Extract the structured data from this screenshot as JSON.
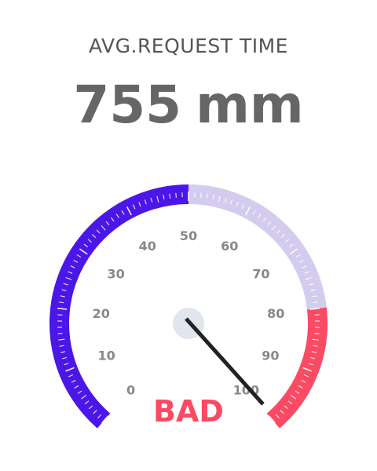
{
  "widget": {
    "title": "AVG.REQUEST TIME",
    "value": "755",
    "unit": "mm",
    "status": "BAD"
  },
  "gauge": {
    "min": 0,
    "max": 100,
    "labels": [
      "0",
      "10",
      "20",
      "30",
      "40",
      "50",
      "60",
      "70",
      "80",
      "90",
      "100"
    ],
    "needle_value": 99.4,
    "bands": [
      {
        "name": "good",
        "from": 0,
        "to": 50,
        "color": "#4b16e8"
      },
      {
        "name": "warn",
        "from": 50,
        "to": 80,
        "color": "#d4ccee"
      },
      {
        "name": "bad",
        "from": 80,
        "to": 100,
        "color": "#fb4a63"
      }
    ],
    "status_color": "#fb4a63",
    "hub_color": "#e1e5ee",
    "needle_color": "#222222"
  }
}
